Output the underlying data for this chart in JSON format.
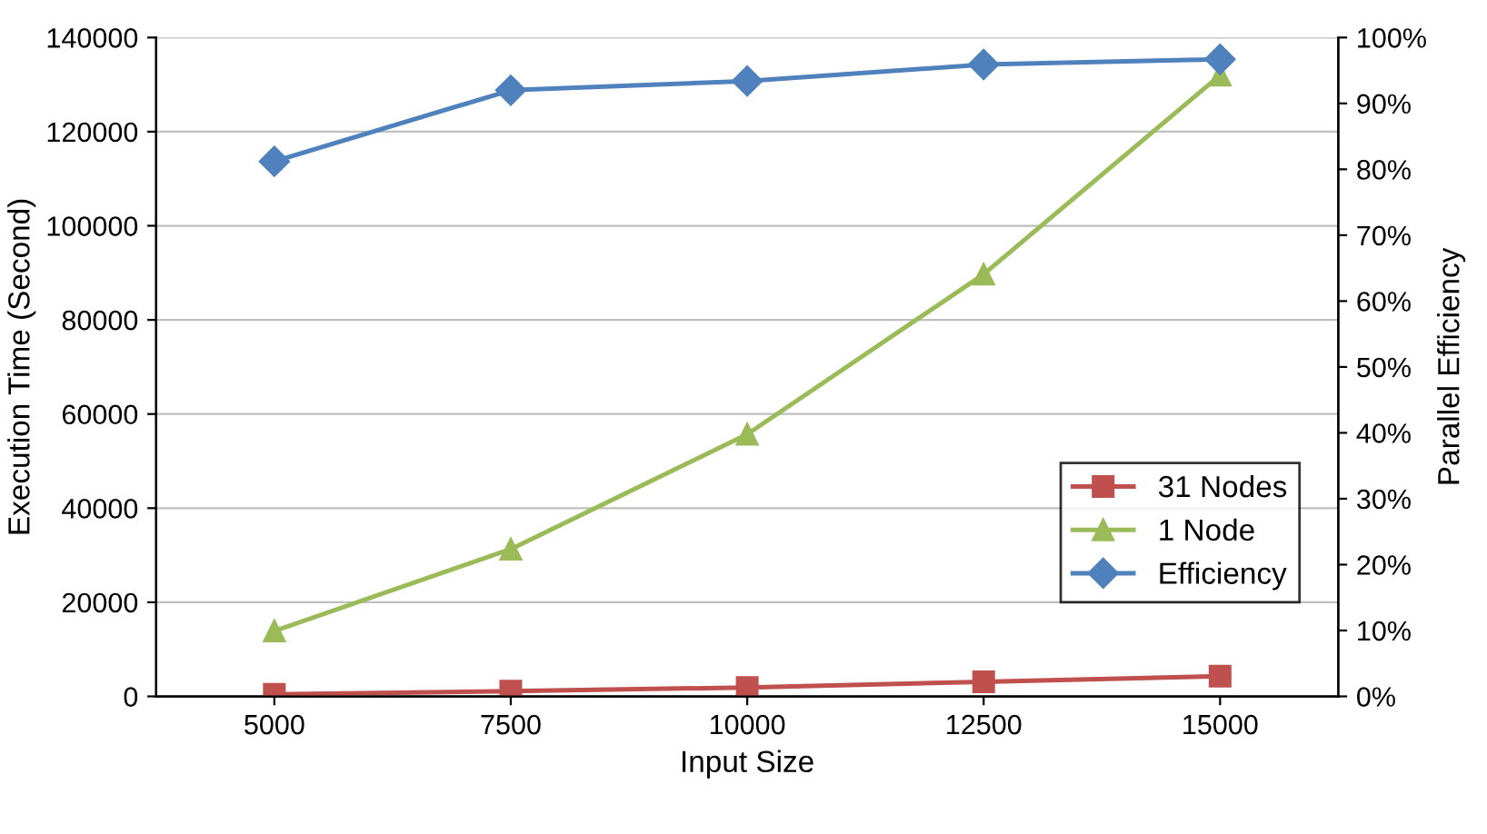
{
  "chart_data": {
    "type": "line",
    "xlabel": "Input Size",
    "ylabel": "Execution Time (Second)",
    "y2label": "Parallel Efficiency",
    "categories": [
      "5000",
      "7500",
      "10000",
      "12500",
      "15000"
    ],
    "series": [
      {
        "name": "31 Nodes",
        "color": "#c0504d",
        "marker": "square",
        "values": [
          450,
          1100,
          1900,
          3100,
          4300
        ]
      },
      {
        "name": "1 Node",
        "color": "#9bbb59",
        "marker": "triangle",
        "values": [
          13900,
          31300,
          55700,
          89700,
          132000
        ]
      },
      {
        "name": "Efficiency",
        "color": "#4f81bd",
        "marker": "diamond",
        "axis": "y2",
        "values": [
          81.2,
          92,
          93.4,
          95.9,
          96.7
        ]
      }
    ],
    "ylim": [
      0,
      140000
    ],
    "yticks": [
      0,
      20000,
      40000,
      60000,
      80000,
      100000,
      120000,
      140000
    ],
    "y2lim": [
      0,
      100
    ],
    "y2ticks": [
      {
        "value": 0,
        "label": "0%"
      },
      {
        "value": 10,
        "label": "10%"
      },
      {
        "value": 20,
        "label": "20%"
      },
      {
        "value": 30,
        "label": "30%"
      },
      {
        "value": 40,
        "label": "40%"
      },
      {
        "value": 50,
        "label": "50%"
      },
      {
        "value": 60,
        "label": "60%"
      },
      {
        "value": 70,
        "label": "70%"
      },
      {
        "value": 80,
        "label": "80%"
      },
      {
        "value": 90,
        "label": "90%"
      },
      {
        "value": 100,
        "label": "100%"
      }
    ],
    "grid": "y",
    "legend": "lower right",
    "line_style": "solid"
  }
}
